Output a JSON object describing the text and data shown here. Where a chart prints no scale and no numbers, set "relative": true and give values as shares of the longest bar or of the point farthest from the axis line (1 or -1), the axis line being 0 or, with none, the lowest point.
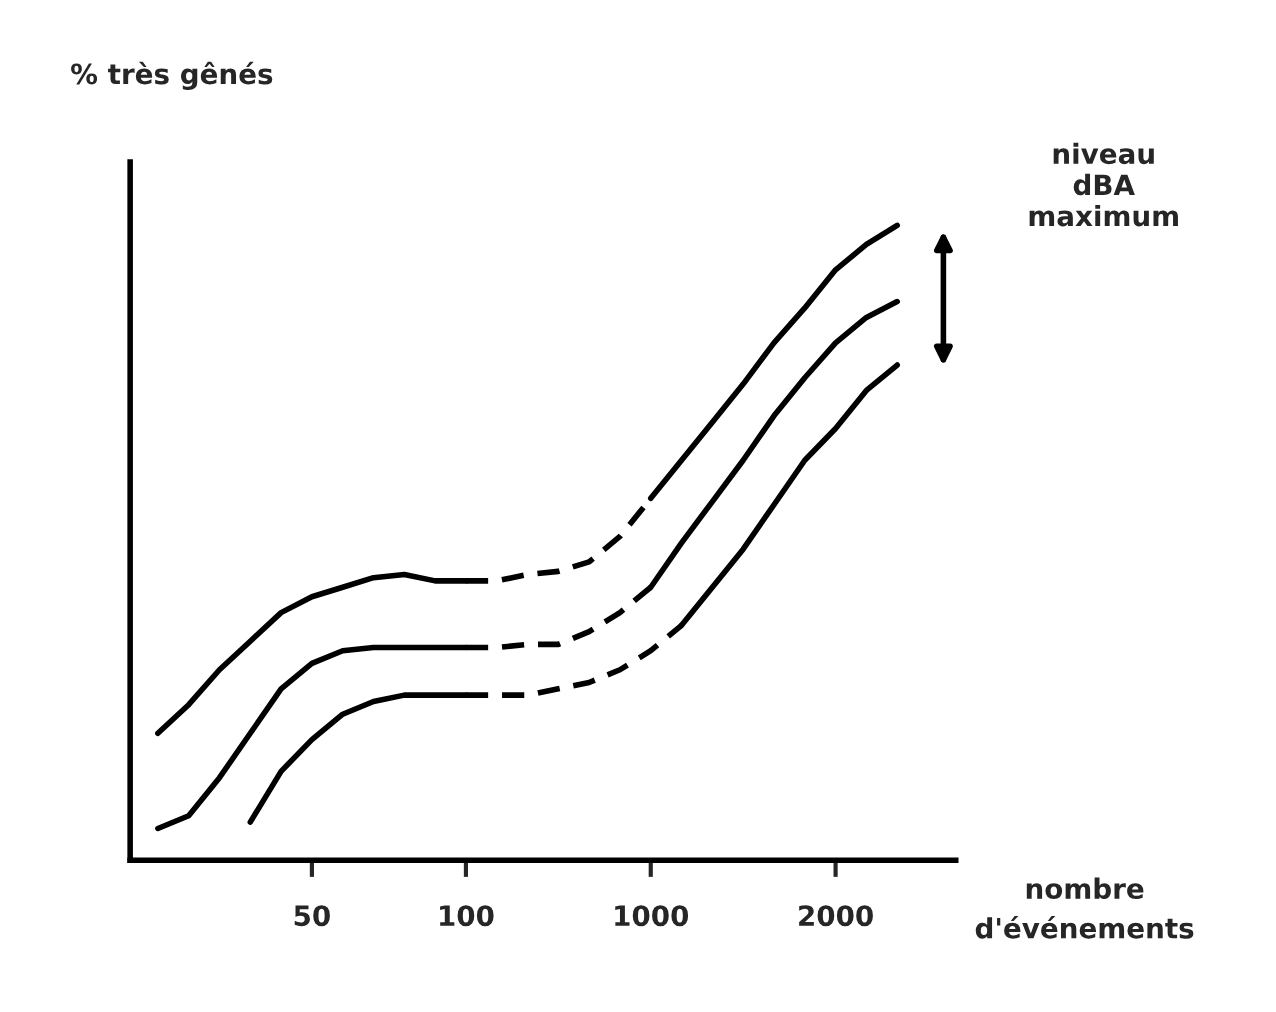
{
  "chart_data": {
    "type": "line",
    "relative": true,
    "ylabel": "% très gênés",
    "xlabel": "nombre\nd'événements",
    "tick_labels": "x",
    "categories": [
      null,
      null,
      null,
      null,
      null,
      "50",
      null,
      null,
      null,
      null,
      "100",
      null,
      null,
      null,
      null,
      null,
      "1000",
      null,
      null,
      null,
      null,
      null,
      "2000",
      null,
      null
    ],
    "annotations": [
      "niveau\ndBA\nmaximum"
    ],
    "series": [
      {
        "color": "#000000",
        "line_style": "solid",
        "values": [
          0.2,
          0.245,
          0.3,
          0.345,
          0.39,
          0.415,
          0.43,
          0.445,
          0.45,
          0.44,
          0.44,
          null,
          null,
          null,
          null,
          null,
          null,
          null,
          null,
          null,
          null,
          null,
          null,
          null,
          null
        ]
      },
      {
        "color": "#000000",
        "line_style": "dashed",
        "values": [
          null,
          null,
          null,
          null,
          null,
          null,
          null,
          null,
          null,
          null,
          0.44,
          0.44,
          0.45,
          0.455,
          0.47,
          0.51,
          0.57,
          null,
          null,
          null,
          null,
          null,
          null,
          null,
          null
        ]
      },
      {
        "color": "#000000",
        "line_style": "solid",
        "values": [
          null,
          null,
          null,
          null,
          null,
          null,
          null,
          null,
          null,
          null,
          null,
          null,
          null,
          null,
          null,
          null,
          0.57,
          0.63,
          0.69,
          0.75,
          0.815,
          0.87,
          0.93,
          0.97,
          1.0
        ]
      },
      {
        "color": "#000000",
        "line_style": "solid",
        "values": [
          0.05,
          0.07,
          0.13,
          0.2,
          0.27,
          0.31,
          0.33,
          0.335,
          0.335,
          0.335,
          0.335,
          null,
          null,
          null,
          null,
          null,
          null,
          null,
          null,
          null,
          null,
          null,
          null,
          null,
          null
        ]
      },
      {
        "color": "#000000",
        "line_style": "dashed",
        "values": [
          null,
          null,
          null,
          null,
          null,
          null,
          null,
          null,
          null,
          null,
          0.335,
          0.335,
          0.34,
          0.34,
          0.36,
          0.39,
          0.43,
          null,
          null,
          null,
          null,
          null,
          null,
          null,
          null
        ]
      },
      {
        "color": "#000000",
        "line_style": "solid",
        "values": [
          null,
          null,
          null,
          null,
          null,
          null,
          null,
          null,
          null,
          null,
          null,
          null,
          null,
          null,
          null,
          null,
          0.43,
          0.5,
          0.565,
          0.63,
          0.7,
          0.76,
          0.815,
          0.855,
          0.88
        ]
      },
      {
        "color": "#000000",
        "line_style": "solid",
        "values": [
          null,
          null,
          null,
          0.06,
          0.14,
          0.19,
          0.23,
          0.25,
          0.26,
          0.26,
          0.26,
          null,
          null,
          null,
          null,
          null,
          null,
          null,
          null,
          null,
          null,
          null,
          null,
          null,
          null
        ]
      },
      {
        "color": "#000000",
        "line_style": "dashed",
        "values": [
          null,
          null,
          null,
          null,
          null,
          null,
          null,
          null,
          null,
          null,
          0.26,
          0.26,
          0.26,
          0.27,
          0.28,
          0.3,
          0.33,
          0.37,
          null,
          null,
          null,
          null,
          null,
          null,
          null
        ]
      },
      {
        "color": "#000000",
        "line_style": "solid",
        "values": [
          null,
          null,
          null,
          null,
          null,
          null,
          null,
          null,
          null,
          null,
          null,
          null,
          null,
          null,
          null,
          null,
          null,
          0.37,
          0.43,
          0.49,
          0.56,
          0.63,
          0.68,
          0.74,
          0.78
        ]
      }
    ]
  }
}
